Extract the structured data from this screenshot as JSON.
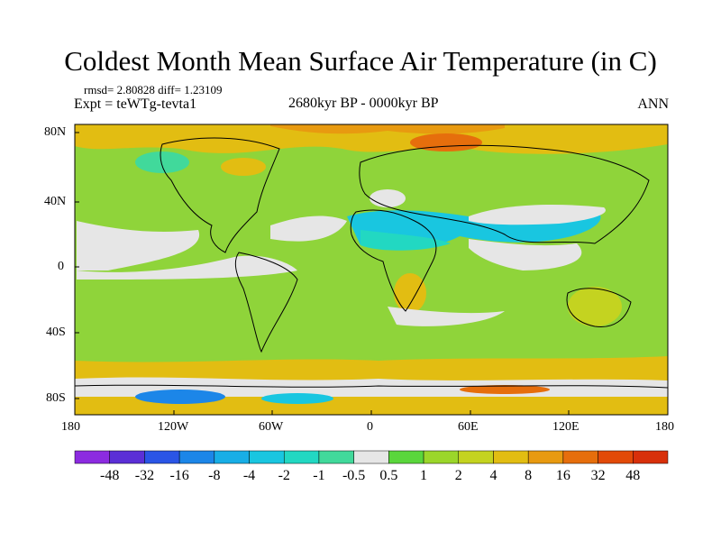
{
  "header": {
    "title": "Coldest Month Mean Surface Air Temperature (in C)",
    "stats": "rmsd= 2.80828 diff= 1.23109",
    "expt": "Expt = teWTg-tevta1",
    "period": "2680kyr BP - 0000kyr BP",
    "season": "ANN"
  },
  "axes": {
    "x_ticks": [
      "180",
      "120W",
      "60W",
      "0",
      "60E",
      "120E",
      "180"
    ],
    "y_ticks": [
      "80N",
      "40N",
      "0",
      "40S",
      "80S"
    ]
  },
  "colorbar": {
    "labels": [
      "-48",
      "-32",
      "-16",
      "-8",
      "-4",
      "-2",
      "-1",
      "-0.5",
      "0.5",
      "1",
      "2",
      "4",
      "8",
      "16",
      "32",
      "48"
    ],
    "colors": [
      "#8c2be0",
      "#5b2fd6",
      "#2a55e6",
      "#1c86e8",
      "#18aee6",
      "#19c6e0",
      "#22d8c2",
      "#41d99b",
      "#e6e6e6",
      "#5ad63c",
      "#9bd62a",
      "#c4d320",
      "#e2bd12",
      "#e89a10",
      "#e66e0c",
      "#e24a08",
      "#d8300a"
    ]
  },
  "map": {
    "background_color": "#8fd43a",
    "land_outline_color": "#000000"
  }
}
